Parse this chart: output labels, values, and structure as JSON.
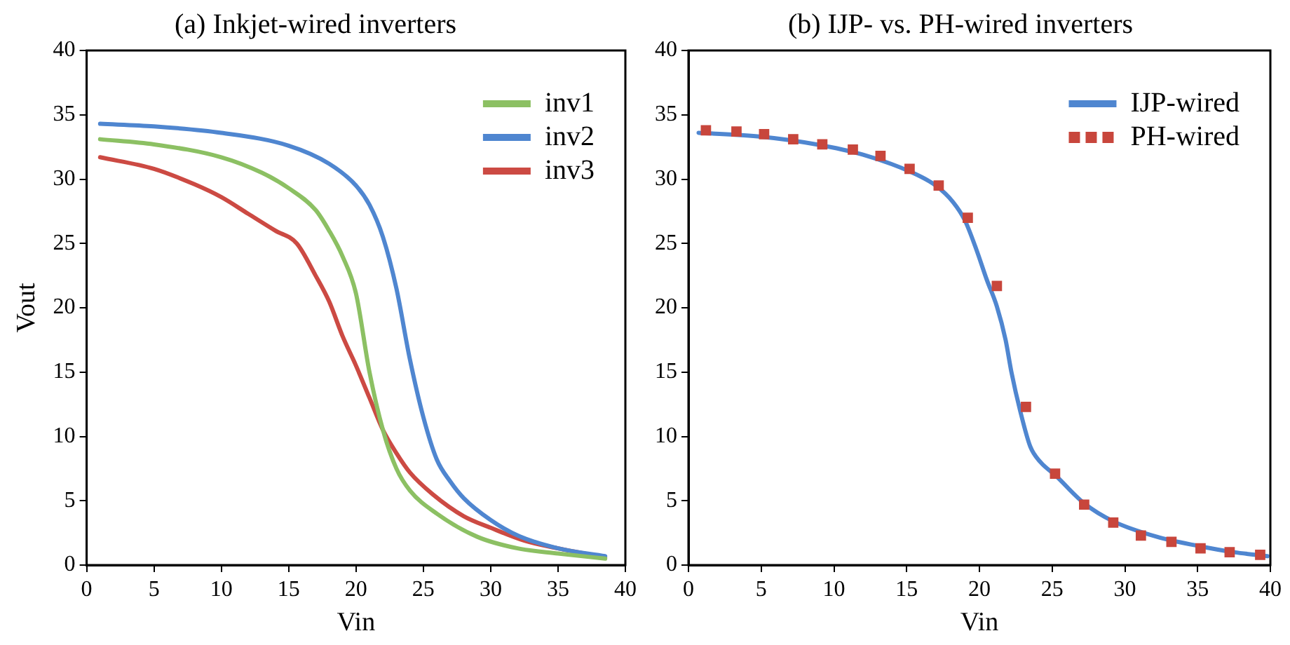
{
  "chart_data": [
    {
      "type": "line",
      "title": "(a) Inkjet-wired inverters",
      "xlabel": "Vin",
      "ylabel": "Vout",
      "xlim": [
        0,
        40
      ],
      "xticks": [
        0,
        5,
        10,
        15,
        20,
        25,
        30,
        35,
        40
      ],
      "ylim": [
        0,
        40
      ],
      "yticks": [
        0,
        5,
        10,
        15,
        20,
        25,
        30,
        35,
        40
      ],
      "grid": false,
      "legend": "top right",
      "marker": "none",
      "line_style": "solid",
      "series": [
        {
          "name": "inv1",
          "color": "#8cc063",
          "x": [
            1,
            5,
            10,
            13,
            15,
            17,
            18,
            19,
            20,
            21,
            22,
            23,
            24,
            26,
            29,
            32,
            35,
            38.5
          ],
          "values": [
            33.1,
            32.7,
            31.7,
            30.5,
            29.3,
            27.6,
            26,
            24,
            21.1,
            15,
            10.5,
            7.5,
            5.8,
            4,
            2.2,
            1.3,
            0.9,
            0.5
          ]
        },
        {
          "name": "inv2",
          "color": "#4f86d0",
          "x": [
            1,
            5,
            10,
            15,
            18,
            20,
            21,
            22,
            23,
            24,
            25,
            26,
            27,
            28,
            30,
            32,
            35,
            38.5
          ],
          "values": [
            34.3,
            34.1,
            33.6,
            32.6,
            31.2,
            29.5,
            28,
            25.5,
            21.5,
            16,
            11.5,
            8.2,
            6.5,
            5.2,
            3.5,
            2.3,
            1.3,
            0.7
          ]
        },
        {
          "name": "inv3",
          "color": "#cc4a43",
          "x": [
            1,
            5,
            8,
            10,
            12,
            14,
            15.6,
            17,
            18,
            19,
            20,
            21,
            22,
            23,
            24,
            25.7,
            28,
            30,
            32.5,
            35,
            38.5
          ],
          "values": [
            31.7,
            30.8,
            29.6,
            28.6,
            27.3,
            26,
            25,
            22.5,
            20.5,
            17.8,
            15.5,
            13,
            10.5,
            8.7,
            7.2,
            5.5,
            3.8,
            2.9,
            1.9,
            1.3,
            0.6
          ]
        }
      ]
    },
    {
      "type": "line",
      "title": "(b) IJP- vs. PH-wired inverters",
      "xlabel": "Vin",
      "xlim": [
        0,
        40
      ],
      "xticks": [
        0,
        5,
        10,
        15,
        20,
        25,
        30,
        35,
        40
      ],
      "ylim": [
        0,
        40
      ],
      "yticks": [
        0,
        5,
        10,
        15,
        20,
        25,
        30,
        35,
        40
      ],
      "grid": false,
      "legend": "top right",
      "line_style": "solid",
      "series": [
        {
          "name": "IJP-wired",
          "color": "#4f86d0",
          "marker": "none",
          "x": [
            0.7,
            5,
            8.8,
            12,
            15.2,
            17,
            18.2,
            19,
            19.8,
            20.5,
            21.2,
            21.8,
            22.2,
            22.8,
            23.5,
            24.2,
            25.2,
            27.2,
            29.2,
            32.2,
            35,
            37.5,
            39.8
          ],
          "values": [
            33.6,
            33.3,
            32.7,
            31.9,
            30.6,
            29.5,
            28.2,
            26.8,
            24.5,
            22.2,
            20.1,
            17.5,
            15,
            12,
            9.2,
            8,
            7,
            4.8,
            3.4,
            2.2,
            1.5,
            1.0,
            0.7
          ]
        },
        {
          "name": "PH-wired",
          "type": "scatter",
          "color": "#c8463c",
          "marker": "square",
          "x": [
            1.2,
            3.3,
            5.2,
            7.2,
            9.2,
            11.3,
            13.2,
            15.2,
            17.2,
            19.2,
            21.2,
            23.2,
            25.2,
            27.2,
            29.2,
            31.1,
            33.2,
            35.2,
            37.2,
            39.3
          ],
          "values": [
            33.8,
            33.7,
            33.5,
            33.1,
            32.7,
            32.3,
            31.8,
            30.8,
            29.5,
            27.0,
            21.7,
            12.3,
            7.1,
            4.7,
            3.3,
            2.3,
            1.8,
            1.3,
            1.0,
            0.8
          ]
        }
      ]
    }
  ]
}
